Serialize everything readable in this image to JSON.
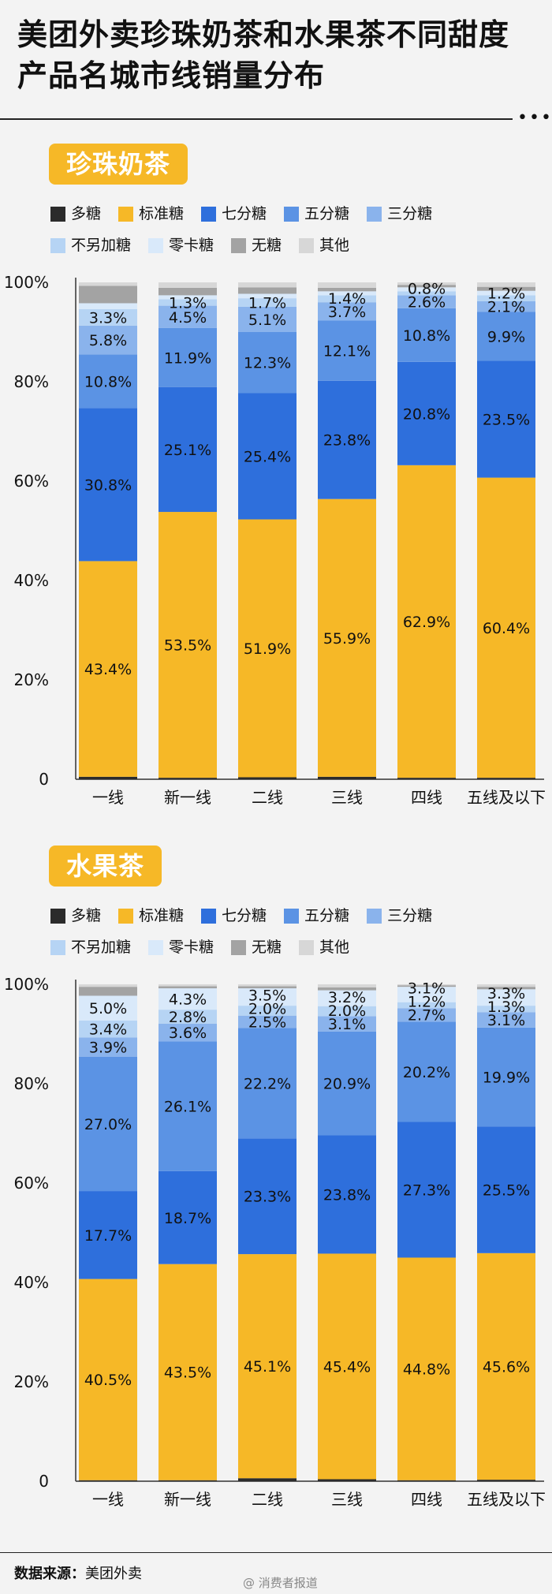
{
  "title": "美团外卖珍珠奶茶和水果茶不同甜度产品名城市线销量分布",
  "more_icon": "more-dots-icon",
  "colors": {
    "多糖": "#2b2b2b",
    "标准糖": "#f6b827",
    "七分糖": "#2e6fdc",
    "五分糖": "#5b93e4",
    "三分糖": "#8ab3ec",
    "不另加糖": "#b6d4f4",
    "零卡糖": "#d9e9fa",
    "无糖": "#a3a3a3",
    "其他": "#d7d7d7"
  },
  "legend": [
    "多糖",
    "标准糖",
    "七分糖",
    "五分糖",
    "三分糖",
    "不另加糖",
    "零卡糖",
    "无糖",
    "其他"
  ],
  "chart_data": [
    {
      "type": "bar",
      "stacked": true,
      "title": "珍珠奶茶",
      "categories": [
        "一线",
        "新一线",
        "二线",
        "三线",
        "四线",
        "五线及以下"
      ],
      "yticks": [
        "0",
        "20%",
        "40%",
        "60%",
        "80%",
        "100%"
      ],
      "ylim": [
        0,
        100
      ],
      "series": [
        {
          "name": "多糖",
          "values": [
            0.5,
            0.3,
            0.4,
            0.5,
            0.3,
            0.3
          ]
        },
        {
          "name": "标准糖",
          "values": [
            43.4,
            53.5,
            51.9,
            55.9,
            62.9,
            60.4
          ]
        },
        {
          "name": "七分糖",
          "values": [
            30.8,
            25.1,
            25.4,
            23.8,
            20.8,
            23.5
          ]
        },
        {
          "name": "五分糖",
          "values": [
            10.8,
            11.9,
            12.3,
            12.1,
            10.8,
            9.9
          ]
        },
        {
          "name": "三分糖",
          "values": [
            5.8,
            4.5,
            5.1,
            3.7,
            2.6,
            2.1
          ]
        },
        {
          "name": "不另加糖",
          "values": [
            3.3,
            1.3,
            1.7,
            1.4,
            0.8,
            1.2
          ]
        },
        {
          "name": "零卡糖",
          "values": [
            1.2,
            0.8,
            0.9,
            0.8,
            0.8,
            0.9
          ]
        },
        {
          "name": "无糖",
          "values": [
            3.5,
            1.5,
            1.3,
            0.7,
            0.5,
            0.8
          ]
        },
        {
          "name": "其他",
          "values": [
            0.7,
            1.1,
            1.0,
            1.1,
            0.5,
            0.9
          ]
        }
      ],
      "data_labels": [
        {
          "series": "标准糖",
          "labels": [
            "43.4%",
            "53.5%",
            "51.9%",
            "55.9%",
            "62.9%",
            "60.4%"
          ]
        },
        {
          "series": "七分糖",
          "labels": [
            "30.8%",
            "25.1%",
            "25.4%",
            "23.8%",
            "20.8%",
            "23.5%"
          ]
        },
        {
          "series": "五分糖",
          "labels": [
            "10.8%",
            "11.9%",
            "12.3%",
            "12.1%",
            "10.8%",
            "9.9%"
          ]
        },
        {
          "series": "三分糖",
          "labels": [
            "5.8%",
            "4.5%",
            "5.1%",
            "3.7%",
            "2.6%",
            "2.1%"
          ]
        },
        {
          "series": "不另加糖",
          "labels": [
            "3.3%",
            "1.3%",
            "1.7%",
            "1.4%",
            "0.8%",
            "1.2%"
          ]
        }
      ]
    },
    {
      "type": "bar",
      "stacked": true,
      "title": "水果茶",
      "categories": [
        "一线",
        "新一线",
        "二线",
        "三线",
        "四线",
        "五线及以下"
      ],
      "yticks": [
        "0",
        "20%",
        "40%",
        "60%",
        "80%",
        "100%"
      ],
      "ylim": [
        0,
        100
      ],
      "series": [
        {
          "name": "多糖",
          "values": [
            0.2,
            0.2,
            0.6,
            0.4,
            0.2,
            0.3
          ]
        },
        {
          "name": "标准糖",
          "values": [
            40.5,
            43.5,
            45.1,
            45.4,
            44.8,
            45.6
          ]
        },
        {
          "name": "七分糖",
          "values": [
            17.7,
            18.7,
            23.3,
            23.8,
            27.3,
            25.5
          ]
        },
        {
          "name": "五分糖",
          "values": [
            27.0,
            26.1,
            22.2,
            20.9,
            20.2,
            19.9
          ]
        },
        {
          "name": "三分糖",
          "values": [
            3.9,
            3.6,
            2.5,
            3.1,
            2.7,
            3.1
          ]
        },
        {
          "name": "不另加糖",
          "values": [
            3.4,
            2.8,
            2.0,
            2.0,
            1.2,
            1.3
          ]
        },
        {
          "name": "零卡糖",
          "values": [
            5.0,
            4.3,
            3.5,
            3.2,
            3.1,
            3.3
          ]
        },
        {
          "name": "无糖",
          "values": [
            1.8,
            0.4,
            0.4,
            0.6,
            0.3,
            0.5
          ]
        },
        {
          "name": "其他",
          "values": [
            0.5,
            0.4,
            0.4,
            0.6,
            0.2,
            0.5
          ]
        }
      ],
      "data_labels": [
        {
          "series": "标准糖",
          "labels": [
            "40.5%",
            "43.5%",
            "45.1%",
            "45.4%",
            "44.8%",
            "45.6%"
          ]
        },
        {
          "series": "七分糖",
          "labels": [
            "17.7%",
            "18.7%",
            "23.3%",
            "23.8%",
            "27.3%",
            "25.5%"
          ]
        },
        {
          "series": "五分糖",
          "labels": [
            "27.0%",
            "26.1%",
            "22.2%",
            "20.9%",
            "20.2%",
            "19.9%"
          ]
        },
        {
          "series": "三分糖",
          "labels": [
            "3.9%",
            "3.6%",
            "2.5%",
            "3.1%",
            "2.7%",
            "3.1%"
          ]
        },
        {
          "series": "不另加糖",
          "labels": [
            "3.4%",
            "2.8%",
            "2.0%",
            "2.0%",
            "1.2%",
            "1.3%"
          ]
        },
        {
          "series": "零卡糖",
          "labels": [
            "5.0%",
            "4.3%",
            "3.5%",
            "3.2%",
            "3.1%",
            "3.3%"
          ]
        }
      ]
    }
  ],
  "footer": {
    "source_label": "数据来源：",
    "source_value": "美团外卖",
    "brand": "@ 消费者报道"
  }
}
